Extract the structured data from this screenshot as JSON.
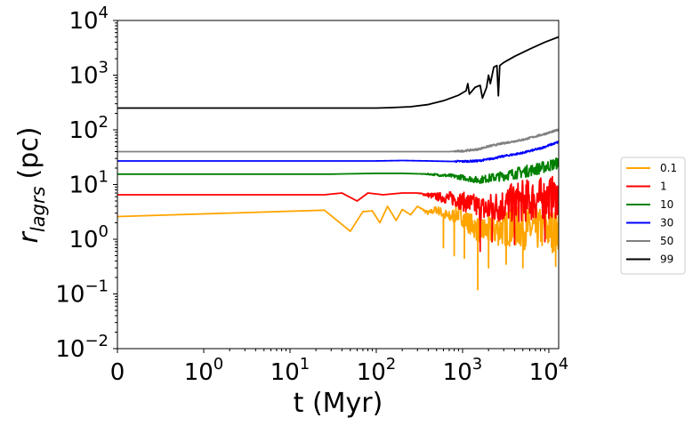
{
  "chart_data": {
    "type": "line",
    "x_scale": "symlog",
    "y_scale": "log",
    "xlabel": "t (Myr)",
    "ylabel_main": "r",
    "ylabel_sub": "lagrs",
    "ylabel_unit": "(pc)",
    "xlim": [
      0,
      13000
    ],
    "ylim": [
      0.01,
      10000
    ],
    "x_ticks": [
      {
        "value": 0,
        "base": "0",
        "exp": ""
      },
      {
        "value": 1,
        "base": "10",
        "exp": "0"
      },
      {
        "value": 10,
        "base": "10",
        "exp": "1"
      },
      {
        "value": 100,
        "base": "10",
        "exp": "2"
      },
      {
        "value": 1000,
        "base": "10",
        "exp": "3"
      },
      {
        "value": 10000,
        "base": "10",
        "exp": "4"
      }
    ],
    "y_ticks": [
      {
        "value": 0.01,
        "base": "10",
        "exp": "−2"
      },
      {
        "value": 0.1,
        "base": "10",
        "exp": "−1"
      },
      {
        "value": 1,
        "base": "10",
        "exp": "0"
      },
      {
        "value": 10,
        "base": "10",
        "exp": "1"
      },
      {
        "value": 100,
        "base": "10",
        "exp": "2"
      },
      {
        "value": 1000,
        "base": "10",
        "exp": "3"
      },
      {
        "value": 10000,
        "base": "10",
        "exp": "4"
      }
    ],
    "legend_position": "outside right",
    "series": [
      {
        "name": "0.1",
        "color": "#ffa500",
        "noisy": true,
        "points": [
          [
            0,
            2.6
          ],
          [
            25,
            3.4
          ],
          [
            50,
            1.4
          ],
          [
            70,
            3.2
          ],
          [
            90,
            3.3
          ],
          [
            110,
            2.0
          ],
          [
            135,
            4.0
          ],
          [
            170,
            2.2
          ],
          [
            200,
            3.5
          ],
          [
            250,
            2.8
          ],
          [
            300,
            4.0
          ],
          [
            400,
            3.0
          ],
          [
            500,
            3.5
          ],
          [
            700,
            2.5
          ],
          [
            900,
            3.0
          ],
          [
            1100,
            2.2
          ],
          [
            1300,
            1.8
          ],
          [
            1500,
            1.5
          ],
          [
            2000,
            1.4
          ],
          [
            2500,
            1.5
          ],
          [
            3000,
            1.6
          ],
          [
            4000,
            1.7
          ],
          [
            5000,
            1.6
          ],
          [
            7000,
            1.5
          ],
          [
            9000,
            1.6
          ],
          [
            11000,
            1.4
          ],
          [
            13000,
            1.6
          ]
        ],
        "dips": [
          [
            600,
            0.7
          ],
          [
            800,
            0.5
          ],
          [
            1050,
            0.45
          ],
          [
            1500,
            0.12
          ],
          [
            2000,
            0.3
          ],
          [
            3200,
            0.35
          ],
          [
            5000,
            0.3
          ],
          [
            12000,
            0.32
          ]
        ]
      },
      {
        "name": "1",
        "color": "#ff0000",
        "noisy": true,
        "points": [
          [
            0,
            6.5
          ],
          [
            25,
            6.5
          ],
          [
            40,
            7.0
          ],
          [
            60,
            5.0
          ],
          [
            80,
            7.0
          ],
          [
            120,
            6.5
          ],
          [
            200,
            7.0
          ],
          [
            300,
            7.0
          ],
          [
            500,
            6.0
          ],
          [
            800,
            5.5
          ],
          [
            1200,
            4.5
          ],
          [
            1800,
            3.5
          ],
          [
            2500,
            4.0
          ],
          [
            3500,
            4.5
          ],
          [
            5000,
            5.0
          ],
          [
            8000,
            5.5
          ],
          [
            13000,
            6.0
          ]
        ],
        "dips": [
          [
            1600,
            0.6
          ],
          [
            2200,
            0.9
          ],
          [
            4000,
            0.8
          ],
          [
            9000,
            0.9
          ]
        ]
      },
      {
        "name": "10",
        "color": "#008000",
        "noisy": true,
        "points": [
          [
            0,
            15.5
          ],
          [
            30,
            15.5
          ],
          [
            100,
            16
          ],
          [
            200,
            16
          ],
          [
            400,
            15.5
          ],
          [
            700,
            14.5
          ],
          [
            1000,
            13.5
          ],
          [
            1500,
            12
          ],
          [
            2000,
            13
          ],
          [
            3000,
            14.5
          ],
          [
            5000,
            17
          ],
          [
            8000,
            20
          ],
          [
            13000,
            25
          ]
        ],
        "dips": []
      },
      {
        "name": "30",
        "color": "#0000ff",
        "noisy": false,
        "points": [
          [
            0,
            27
          ],
          [
            50,
            27
          ],
          [
            100,
            27
          ],
          [
            200,
            27.5
          ],
          [
            400,
            27
          ],
          [
            700,
            26.5
          ],
          [
            1000,
            26.5
          ],
          [
            1500,
            27
          ],
          [
            2000,
            29
          ],
          [
            3000,
            33
          ],
          [
            5000,
            38
          ],
          [
            8000,
            46
          ],
          [
            13000,
            60
          ]
        ],
        "dips": []
      },
      {
        "name": "50",
        "color": "#808080",
        "noisy": false,
        "points": [
          [
            0,
            40
          ],
          [
            100,
            40
          ],
          [
            300,
            40
          ],
          [
            700,
            40
          ],
          [
            1000,
            41
          ],
          [
            1500,
            44
          ],
          [
            2000,
            50
          ],
          [
            3000,
            57
          ],
          [
            5000,
            66
          ],
          [
            8000,
            80
          ],
          [
            13000,
            100
          ]
        ],
        "dips": []
      },
      {
        "name": "99",
        "color": "#000000",
        "noisy": false,
        "points": [
          [
            0,
            250
          ],
          [
            100,
            250
          ],
          [
            150,
            255
          ],
          [
            250,
            265
          ],
          [
            400,
            290
          ],
          [
            600,
            340
          ],
          [
            900,
            430
          ],
          [
            1100,
            520
          ],
          [
            1150,
            700
          ],
          [
            1200,
            450
          ],
          [
            1400,
            600
          ],
          [
            1600,
            650
          ],
          [
            1700,
            380
          ],
          [
            1900,
            600
          ],
          [
            2000,
            1000
          ],
          [
            2100,
            700
          ],
          [
            2300,
            1400
          ],
          [
            2500,
            1500
          ],
          [
            2600,
            420
          ],
          [
            2700,
            1500
          ],
          [
            3000,
            1700
          ],
          [
            4000,
            2200
          ],
          [
            6000,
            3000
          ],
          [
            9000,
            4000
          ],
          [
            13000,
            5000
          ]
        ],
        "dips": []
      }
    ]
  }
}
